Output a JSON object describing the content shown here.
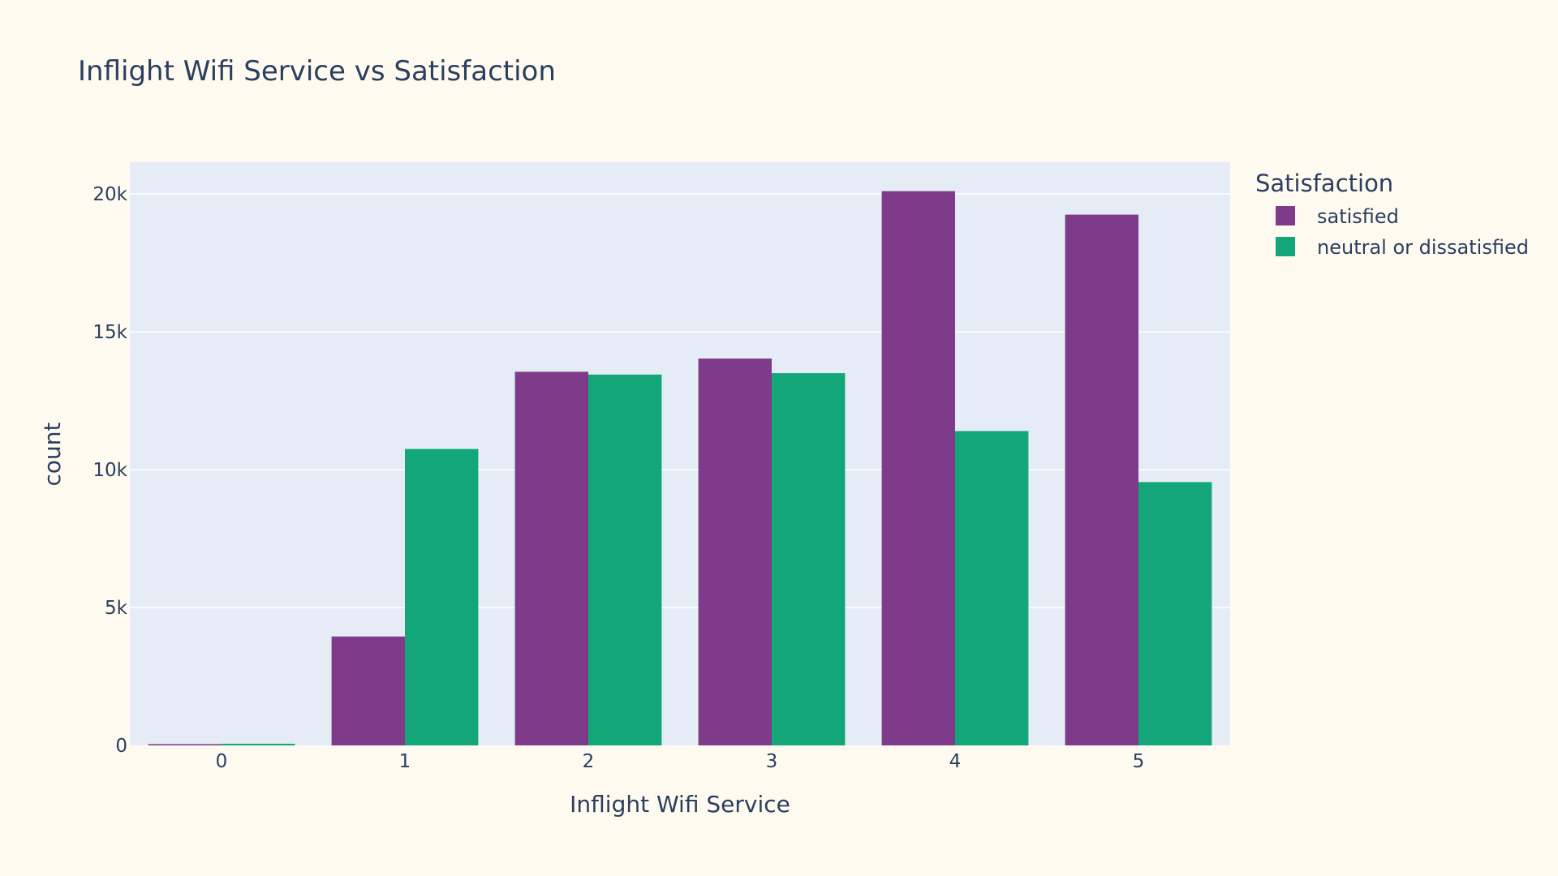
{
  "chart_data": {
    "type": "bar",
    "title": "Inflight Wifi Service vs Satisfaction",
    "xlabel": "Inflight Wifi Service",
    "ylabel": "count",
    "categories": [
      "0",
      "1",
      "2",
      "3",
      "4",
      "5"
    ],
    "series": [
      {
        "name": "satisfied",
        "color": "#7E3B8A",
        "values": [
          46,
          3950,
          13550,
          14030,
          20100,
          19250
        ]
      },
      {
        "name": "neutral or dissatisfied",
        "color": "#13A678",
        "values": [
          60,
          10750,
          13450,
          13500,
          11400,
          9550
        ]
      }
    ],
    "ylim": [
      0,
      21150
    ],
    "yticks": [
      0,
      5000,
      10000,
      15000,
      20000
    ],
    "ytick_labels": [
      "0",
      "5k",
      "10k",
      "15k",
      "20k"
    ],
    "legend": {
      "title": "Satisfaction",
      "placement": "right"
    },
    "grid": true,
    "colors": {
      "page_background": "#FFFAF0",
      "plot_background": "#E5ECF6",
      "gridline": "#FFFFFF",
      "text": "#2A3F5F"
    }
  }
}
